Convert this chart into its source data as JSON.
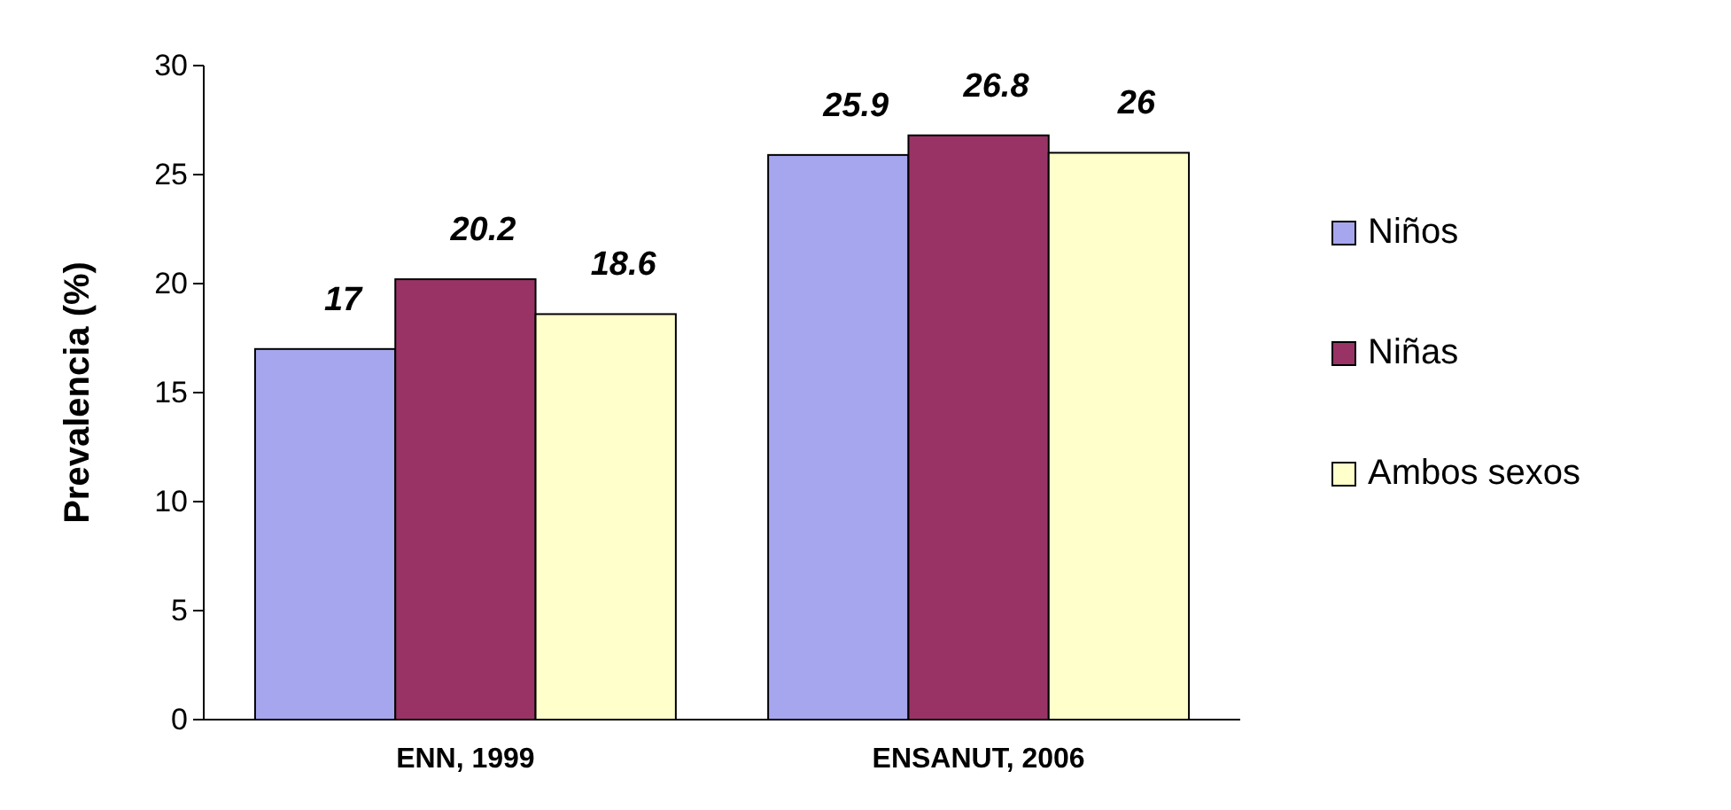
{
  "chart_data": {
    "type": "bar",
    "ylabel": "Prevalencia (%)",
    "categories": [
      "ENN, 1999",
      "ENSANUT, 2006"
    ],
    "series": [
      {
        "name": "Niños",
        "color": "#a6a6ee",
        "values": [
          17,
          25.9
        ]
      },
      {
        "name": "Niñas",
        "color": "#993366",
        "values": [
          20.2,
          26.8
        ]
      },
      {
        "name": "Ambos sexos",
        "color": "#ffffcc",
        "values": [
          18.6,
          26
        ]
      }
    ],
    "ylim": [
      0,
      30
    ],
    "yticks": [
      0,
      5,
      10,
      15,
      20,
      25,
      30
    ],
    "data_labels": true,
    "legend": "right",
    "grid": false
  }
}
